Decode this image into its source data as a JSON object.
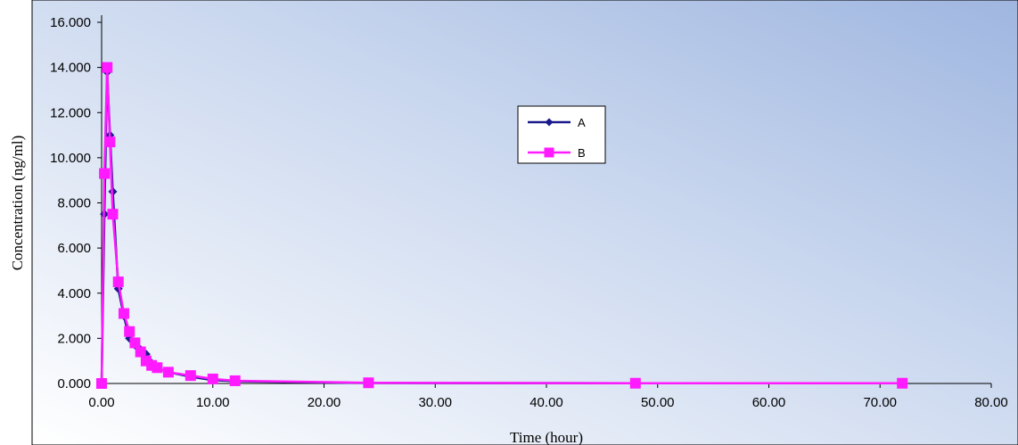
{
  "chart_data": {
    "type": "line",
    "title": "",
    "xlabel": "Time (hour)",
    "ylabel": "Concentration (ng/ml)",
    "xlim": [
      0,
      80
    ],
    "ylim": [
      0,
      16
    ],
    "x_ticks": [
      "0.00",
      "10.00",
      "20.00",
      "30.00",
      "40.00",
      "50.00",
      "60.00",
      "70.00",
      "80.00"
    ],
    "y_ticks": [
      "0.000",
      "2.000",
      "4.000",
      "6.000",
      "8.000",
      "10.000",
      "12.000",
      "14.000",
      "16.000"
    ],
    "grid": false,
    "legend_position": "upper-center",
    "series": [
      {
        "name": "A",
        "color": "#1a1a8c",
        "marker": "diamond",
        "x": [
          0,
          0.25,
          0.5,
          0.75,
          1,
          1.5,
          2,
          2.5,
          3,
          3.5,
          4,
          4.5,
          5,
          6,
          8,
          10,
          12,
          24,
          48,
          72
        ],
        "y": [
          0,
          7.5,
          13.8,
          11.0,
          8.5,
          4.2,
          3.0,
          2.0,
          1.7,
          1.5,
          1.3,
          0.9,
          0.7,
          0.5,
          0.3,
          0.15,
          0.1,
          0.02,
          0.01,
          0.01
        ]
      },
      {
        "name": "B",
        "color": "#ff1aff",
        "marker": "square",
        "x": [
          0,
          0.25,
          0.5,
          0.75,
          1,
          1.5,
          2,
          2.5,
          3,
          3.5,
          4,
          4.5,
          5,
          6,
          8,
          10,
          12,
          24,
          48,
          72
        ],
        "y": [
          0,
          9.3,
          14.0,
          10.7,
          7.5,
          4.5,
          3.1,
          2.3,
          1.8,
          1.4,
          1.0,
          0.8,
          0.7,
          0.5,
          0.35,
          0.2,
          0.12,
          0.03,
          0.01,
          0.01
        ]
      }
    ]
  }
}
